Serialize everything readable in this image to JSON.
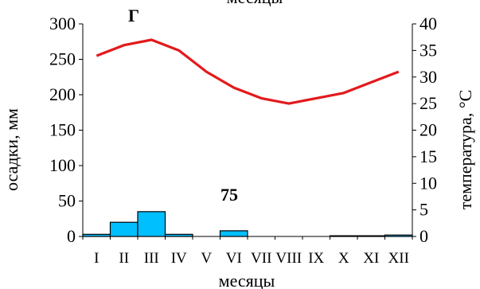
{
  "chart_data": {
    "type": "bar+line",
    "panel_label": "Г",
    "top_label": "месяцы",
    "xlabel": "месяцы",
    "ylabel_left": "осадки, мм",
    "ylabel_right": "температура, °С",
    "categories": [
      "I",
      "II",
      "III",
      "IV",
      "V",
      "VI",
      "VII",
      "VIII",
      "IX",
      "X",
      "XI",
      "XII"
    ],
    "y_left": {
      "min": 0,
      "max": 300,
      "ticks": [
        0,
        50,
        100,
        150,
        200,
        250,
        300
      ]
    },
    "y_right": {
      "min": 0,
      "max": 40,
      "ticks": [
        0,
        5,
        10,
        15,
        20,
        25,
        30,
        35,
        40
      ]
    },
    "series": [
      {
        "name": "осадки, мм",
        "kind": "bar",
        "axis": "left",
        "color": "#00BFFF",
        "values": [
          3,
          20,
          35,
          3,
          0,
          8,
          0,
          0,
          0,
          1,
          1,
          2
        ]
      },
      {
        "name": "температура, °С",
        "kind": "line",
        "axis": "right",
        "color": "#E31A1C",
        "values": [
          34,
          36,
          37,
          35,
          31,
          28,
          26,
          25,
          26,
          27,
          29,
          31
        ]
      }
    ],
    "annotation": "75",
    "grid": false,
    "legend": "none"
  }
}
